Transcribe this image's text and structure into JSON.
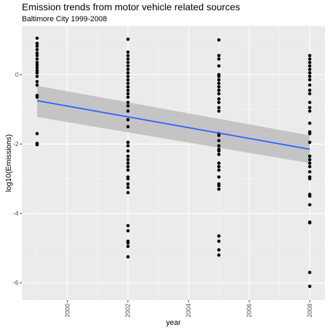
{
  "chart_data": {
    "type": "scatter",
    "title": "Emission trends from motor vehicle related sources",
    "subtitle": "Baltimore City 1999-2008",
    "xlabel": "year",
    "ylabel": "log10(Emissions)",
    "xlim": [
      1998.5,
      2008.5
    ],
    "ylim": [
      -6.5,
      1.4
    ],
    "x_ticks": [
      2000,
      2002,
      2004,
      2006,
      2008
    ],
    "y_ticks": [
      0,
      -2,
      -4,
      -6
    ],
    "grid": true,
    "colors": {
      "panel": "#ebebeb",
      "grid_major": "#ffffff",
      "points": "#000000",
      "trend_line": "#3366ff",
      "confidence_band": "#bdbdbd"
    },
    "points": [
      {
        "x": 1999,
        "y": [
          1.05,
          0.9,
          0.82,
          0.72,
          0.62,
          0.55,
          0.45,
          0.35,
          0.28,
          0.2,
          0.12,
          0.05,
          -0.05,
          -0.2,
          -0.3,
          -0.6,
          -0.65,
          -1.7,
          -1.98,
          -2.02
        ]
      },
      {
        "x": 2002,
        "y": [
          1.02,
          0.65,
          0.55,
          0.45,
          0.35,
          0.25,
          0.15,
          0.05,
          -0.05,
          -0.15,
          -0.25,
          -0.35,
          -0.45,
          -0.55,
          -0.65,
          -0.8,
          -0.9,
          -1.05,
          -1.3,
          -1.5,
          -1.95,
          -2.05,
          -2.2,
          -2.35,
          -2.45,
          -2.55,
          -2.65,
          -2.75,
          -2.95,
          -3.0,
          -3.15,
          -3.25,
          -3.4,
          -4.35,
          -4.5,
          -4.8,
          -4.85,
          -4.95,
          -5.25
        ]
      },
      {
        "x": 2005,
        "y": [
          1.0,
          0.55,
          0.45,
          0.25,
          0.0,
          -0.05,
          -0.15,
          -0.25,
          -0.35,
          -0.45,
          -0.55,
          -0.7,
          -0.8,
          -0.95,
          -1.05,
          -1.7,
          -1.75,
          -1.9,
          -2.05,
          -2.15,
          -2.2,
          -2.3,
          -2.55,
          -2.65,
          -2.75,
          -2.95,
          -3.15,
          -3.2,
          -3.3,
          -4.65,
          -4.8,
          -5.05,
          -5.2
        ]
      },
      {
        "x": 2008,
        "y": [
          0.55,
          0.45,
          0.35,
          0.25,
          0.15,
          0.05,
          -0.05,
          -0.15,
          -0.3,
          -0.45,
          -0.55,
          -0.8,
          -0.95,
          -1.05,
          -1.4,
          -1.65,
          -1.7,
          -1.95,
          -2.35,
          -2.45,
          -2.55,
          -2.65,
          -2.8,
          -2.95,
          -3.0,
          -3.45,
          -3.5,
          -3.75,
          -4.25,
          -4.27,
          -5.7,
          -6.1
        ]
      }
    ],
    "trend": {
      "x": [
        1999,
        2008
      ],
      "y": [
        -0.75,
        -2.15
      ],
      "ci_lower": [
        -1.22,
        -2.55
      ],
      "ci_upper": [
        -0.32,
        -1.75
      ]
    }
  }
}
